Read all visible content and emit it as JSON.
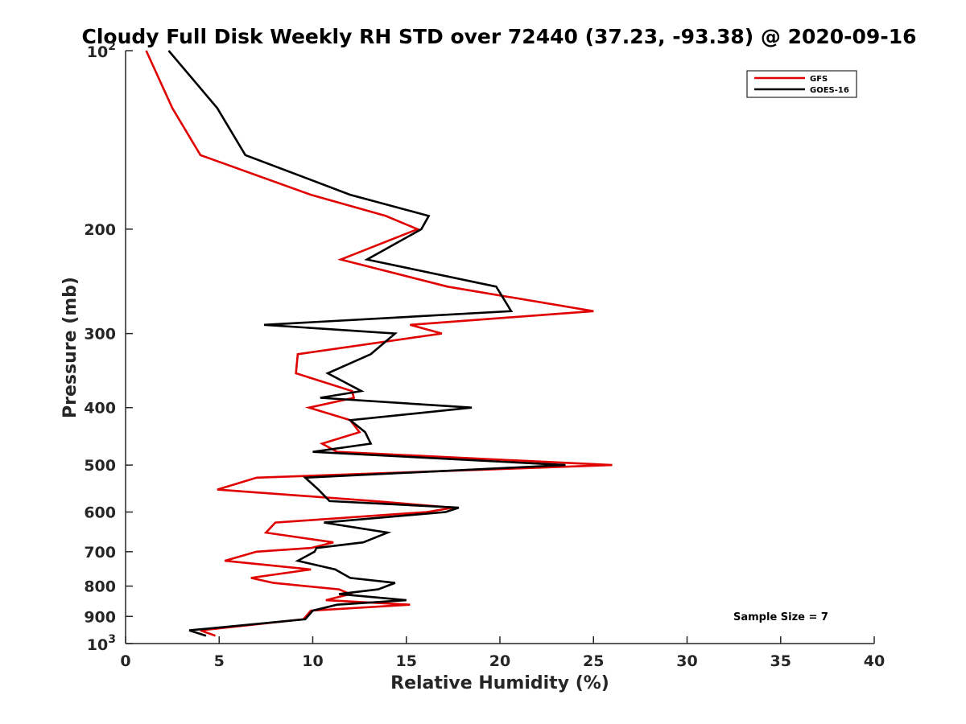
{
  "chart_data": {
    "type": "line",
    "title": "Cloudy Full Disk Weekly RH STD over 72440 (37.23, -93.38) @ 2020-09-16",
    "xlabel": "Relative Humidity (%)",
    "ylabel": "Pressure (mb)",
    "xlim": [
      0,
      40
    ],
    "ylim": [
      100,
      1000
    ],
    "y_scale": "log",
    "y_reversed": true,
    "grid": false,
    "legend_position": "top-right",
    "x_ticks": [
      "0",
      "5",
      "10",
      "15",
      "20",
      "25",
      "30",
      "35",
      "40"
    ],
    "y_ticks": [
      {
        "value": 100,
        "base": "10",
        "exp": "2"
      },
      {
        "value": 200,
        "label": "200"
      },
      {
        "value": 300,
        "label": "300"
      },
      {
        "value": 400,
        "label": "400"
      },
      {
        "value": 500,
        "label": "500"
      },
      {
        "value": 600,
        "label": "600"
      },
      {
        "value": 700,
        "label": "700"
      },
      {
        "value": 800,
        "label": "800"
      },
      {
        "value": 900,
        "label": "900"
      },
      {
        "value": 1000,
        "base": "10",
        "exp": "3"
      }
    ],
    "annotation": "Sample Size = 7",
    "series": [
      {
        "name": "GFS",
        "color": "#e00000",
        "points": [
          [
            1.1,
            100
          ],
          [
            2.5,
            125
          ],
          [
            4.0,
            150
          ],
          [
            9.9,
            175
          ],
          [
            13.9,
            190
          ],
          [
            15.6,
            200
          ],
          [
            11.5,
            225
          ],
          [
            17.2,
            250
          ],
          [
            25.0,
            275
          ],
          [
            15.2,
            290
          ],
          [
            16.9,
            300
          ],
          [
            9.2,
            325
          ],
          [
            9.1,
            350
          ],
          [
            12.1,
            375
          ],
          [
            12.2,
            385
          ],
          [
            9.8,
            400
          ],
          [
            12.0,
            420
          ],
          [
            12.5,
            440
          ],
          [
            10.5,
            460
          ],
          [
            11.3,
            475
          ],
          [
            26.0,
            500
          ],
          [
            7.0,
            525
          ],
          [
            4.9,
            550
          ],
          [
            13.3,
            575
          ],
          [
            17.5,
            590
          ],
          [
            16.1,
            600
          ],
          [
            8.0,
            625
          ],
          [
            7.5,
            650
          ],
          [
            11.1,
            675
          ],
          [
            9.9,
            690
          ],
          [
            7.0,
            700
          ],
          [
            5.3,
            725
          ],
          [
            9.9,
            750
          ],
          [
            6.7,
            775
          ],
          [
            7.9,
            790
          ],
          [
            11.4,
            810
          ],
          [
            12.0,
            825
          ],
          [
            10.7,
            845
          ],
          [
            15.2,
            860
          ],
          [
            9.9,
            880
          ],
          [
            9.5,
            910
          ],
          [
            4.0,
            950
          ],
          [
            4.8,
            970
          ]
        ]
      },
      {
        "name": "GOES-16",
        "color": "#000000",
        "points": [
          [
            2.3,
            100
          ],
          [
            4.9,
            125
          ],
          [
            6.4,
            150
          ],
          [
            12.0,
            175
          ],
          [
            16.2,
            190
          ],
          [
            15.8,
            200
          ],
          [
            12.9,
            225
          ],
          [
            19.8,
            250
          ],
          [
            20.6,
            275
          ],
          [
            7.4,
            290
          ],
          [
            14.4,
            300
          ],
          [
            13.1,
            325
          ],
          [
            10.8,
            350
          ],
          [
            12.6,
            375
          ],
          [
            10.4,
            385
          ],
          [
            18.5,
            400
          ],
          [
            12.0,
            420
          ],
          [
            12.8,
            440
          ],
          [
            13.1,
            460
          ],
          [
            10.0,
            475
          ],
          [
            23.5,
            500
          ],
          [
            9.6,
            525
          ],
          [
            10.3,
            550
          ],
          [
            10.9,
            575
          ],
          [
            17.8,
            590
          ],
          [
            17.1,
            600
          ],
          [
            10.6,
            625
          ],
          [
            14.0,
            650
          ],
          [
            12.7,
            675
          ],
          [
            10.2,
            690
          ],
          [
            10.1,
            700
          ],
          [
            9.2,
            725
          ],
          [
            11.2,
            750
          ],
          [
            12.0,
            775
          ],
          [
            14.4,
            790
          ],
          [
            13.5,
            810
          ],
          [
            11.4,
            825
          ],
          [
            15.0,
            845
          ],
          [
            11.3,
            860
          ],
          [
            10.0,
            880
          ],
          [
            9.6,
            910
          ],
          [
            3.4,
            950
          ],
          [
            4.3,
            970
          ]
        ]
      }
    ]
  }
}
